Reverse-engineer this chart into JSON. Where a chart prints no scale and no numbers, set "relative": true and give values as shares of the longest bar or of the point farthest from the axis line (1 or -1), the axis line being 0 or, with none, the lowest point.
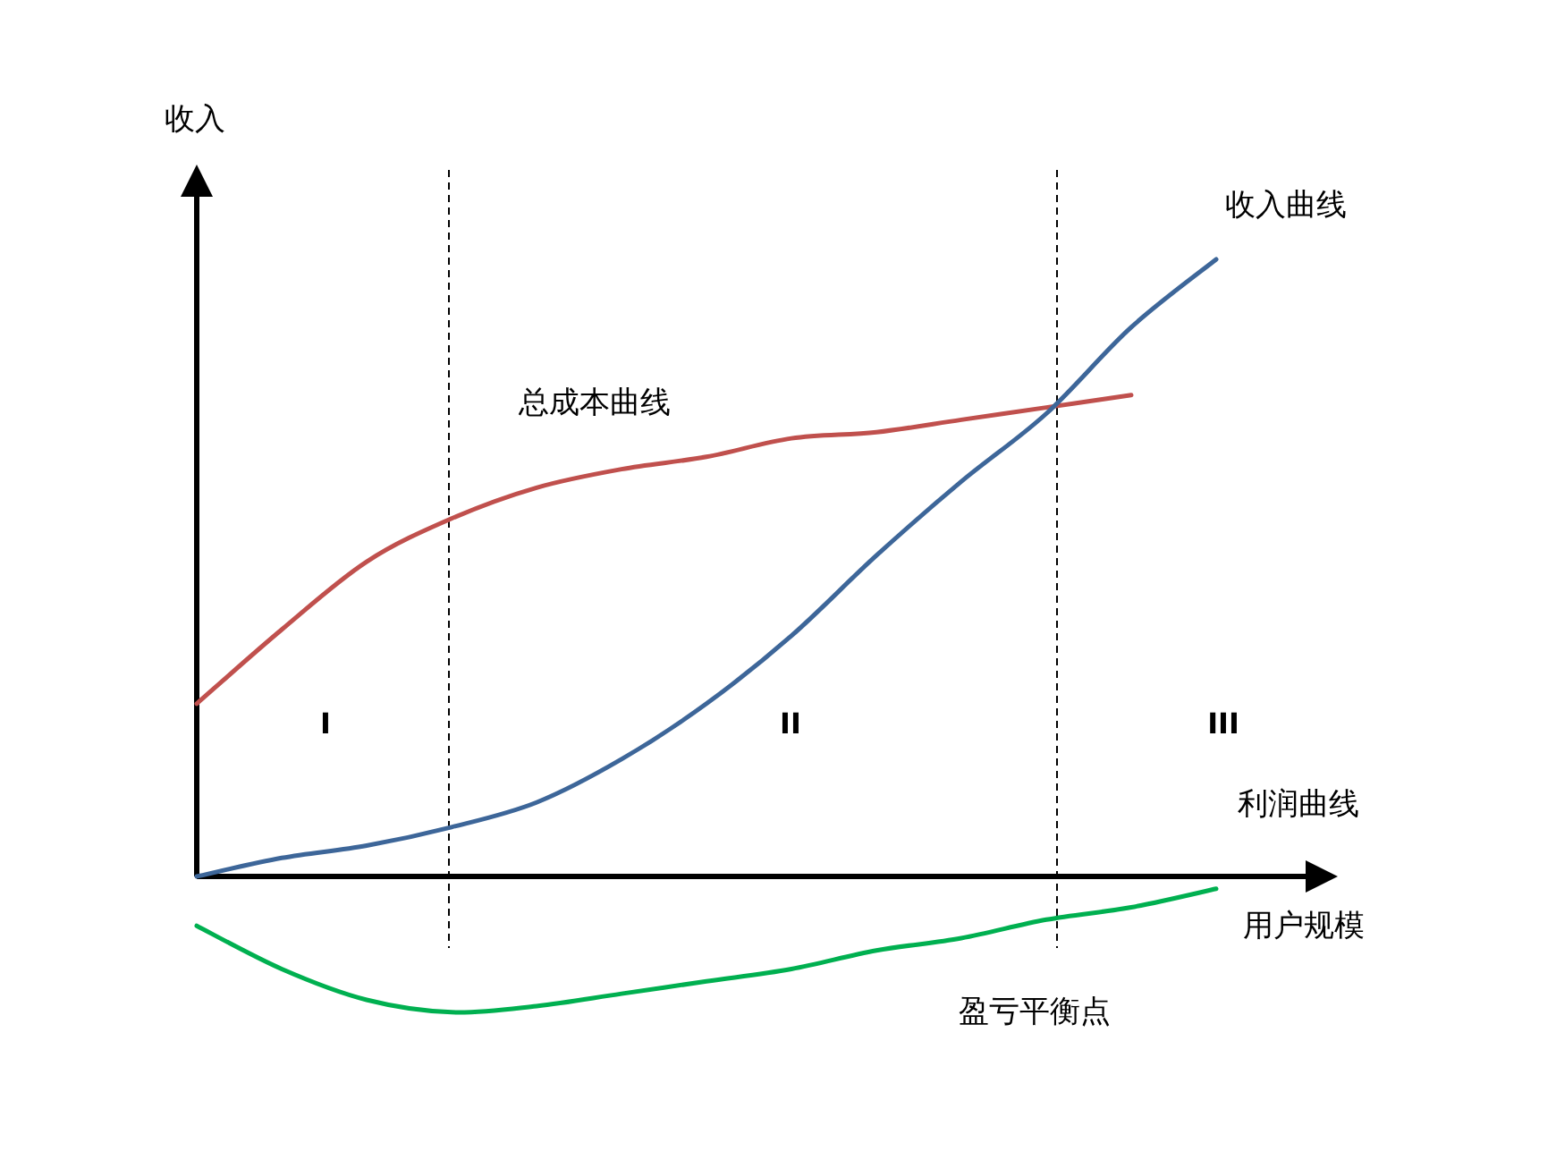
{
  "chart_data": {
    "type": "line",
    "relative": true,
    "xlabel": "用户规模",
    "ylabel": "收入",
    "categories": [
      null,
      null,
      null,
      null,
      null,
      null,
      null,
      null,
      null,
      null,
      null,
      null,
      null
    ],
    "series": [
      {
        "name": "总成本曲线",
        "color": "#c0504d",
        "values": [
          0.28,
          0.4,
          0.51,
          0.58,
          0.63,
          0.66,
          0.68,
          0.71,
          0.72,
          0.74,
          0.76,
          0.78,
          null
        ]
      },
      {
        "name": "收入曲线",
        "color": "#3d6699",
        "values": [
          0,
          0.03,
          0.05,
          0.08,
          0.12,
          0.19,
          0.28,
          0.39,
          0.52,
          0.64,
          0.75,
          0.89,
          1
        ]
      },
      {
        "name": "利润曲线",
        "color": "#00b050",
        "values": [
          -0.08,
          -0.15,
          -0.2,
          -0.22,
          -0.21,
          -0.19,
          -0.17,
          -0.15,
          -0.12,
          -0.1,
          -0.07,
          -0.05,
          -0.02
        ]
      }
    ],
    "annotations": [
      "I",
      "II",
      "III",
      "盈亏平衡点"
    ]
  }
}
